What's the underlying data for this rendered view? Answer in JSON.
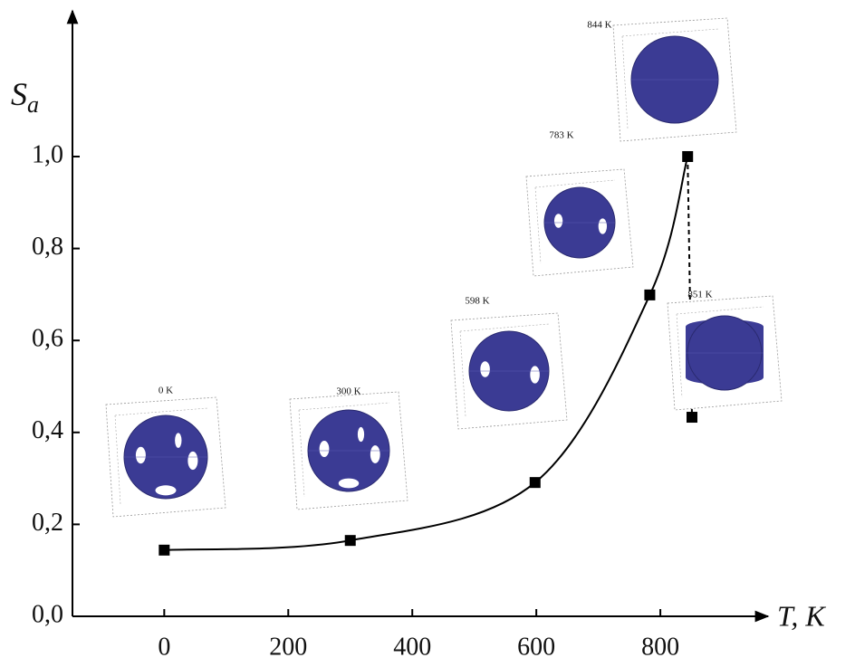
{
  "chart_data": {
    "type": "line",
    "xlabel": "T, K",
    "ylabel": [
      "S",
      "a"
    ],
    "x": [
      0,
      300,
      598,
      783,
      844,
      851
    ],
    "series": [
      {
        "color": "#000000",
        "values": [
          0.144,
          0.165,
          0.291,
          0.699,
          1.0,
          0.433
        ]
      }
    ],
    "xlim": [
      -148,
      962
    ],
    "ylim": [
      0,
      1.31
    ],
    "xticks": [
      0,
      200,
      400,
      600,
      800
    ],
    "yticks": [
      {
        "value": 0,
        "label": "0,0"
      },
      {
        "value": 0.2,
        "label": "0,2"
      },
      {
        "value": 0.4,
        "label": "0,4"
      },
      {
        "value": 0.6,
        "label": "0,6"
      },
      {
        "value": 0.8,
        "label": "0,8"
      },
      {
        "value": 1.0,
        "label": "1,0"
      }
    ],
    "insets": [
      {
        "label": "0 K"
      },
      {
        "label": "300 K"
      },
      {
        "label": "598 K"
      },
      {
        "label": "783 K"
      },
      {
        "label": "844 K"
      },
      {
        "label": "851 K"
      }
    ]
  }
}
